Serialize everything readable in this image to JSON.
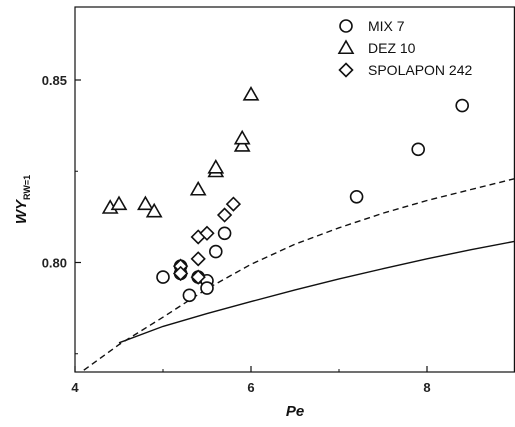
{
  "chart_data": {
    "type": "scatter",
    "title": "",
    "xlabel": "Pe",
    "ylabel": "WY",
    "ylabel_subscript": "RW=1",
    "xlim": [
      4,
      9
    ],
    "ylim": [
      0.77,
      0.87
    ],
    "xticks": [
      4,
      6,
      8
    ],
    "xtick_labels": [
      "4",
      "6",
      "8"
    ],
    "yticks": [
      0.8,
      0.85
    ],
    "ytick_labels": [
      "0.80",
      "0.85"
    ],
    "grid": false,
    "legend_position": "top-right",
    "series": [
      {
        "name": "MIX 7",
        "marker": "circle",
        "points": [
          [
            5.0,
            0.796
          ],
          [
            5.2,
            0.799
          ],
          [
            5.2,
            0.797
          ],
          [
            5.3,
            0.791
          ],
          [
            5.4,
            0.796
          ],
          [
            5.5,
            0.795
          ],
          [
            5.5,
            0.793
          ],
          [
            5.6,
            0.803
          ],
          [
            5.7,
            0.808
          ],
          [
            7.2,
            0.818
          ],
          [
            7.9,
            0.831
          ],
          [
            8.4,
            0.843
          ]
        ]
      },
      {
        "name": "DEZ 10",
        "marker": "triangle",
        "points": [
          [
            4.4,
            0.815
          ],
          [
            4.5,
            0.816
          ],
          [
            4.8,
            0.816
          ],
          [
            4.9,
            0.814
          ],
          [
            5.4,
            0.82
          ],
          [
            5.6,
            0.825
          ],
          [
            5.6,
            0.826
          ],
          [
            5.9,
            0.832
          ],
          [
            5.9,
            0.834
          ],
          [
            6.0,
            0.846
          ]
        ]
      },
      {
        "name": "SPOLAPON 242",
        "marker": "diamond",
        "points": [
          [
            5.2,
            0.799
          ],
          [
            5.2,
            0.797
          ],
          [
            5.4,
            0.796
          ],
          [
            5.4,
            0.801
          ],
          [
            5.4,
            0.807
          ],
          [
            5.5,
            0.808
          ],
          [
            5.7,
            0.813
          ],
          [
            5.8,
            0.816
          ]
        ]
      }
    ],
    "lines": [
      {
        "style": "dashed",
        "x": [
          4.1,
          4.5,
          5.0,
          5.5,
          6.0,
          6.5,
          7.0,
          7.5,
          8.0,
          8.5,
          9.0
        ],
        "y": [
          0.7705,
          0.7775,
          0.785,
          0.7928,
          0.7995,
          0.805,
          0.8095,
          0.8135,
          0.817,
          0.82,
          0.823
        ]
      },
      {
        "style": "solid",
        "x": [
          4.5,
          5.0,
          5.5,
          6.0,
          6.5,
          7.0,
          7.5,
          8.0,
          8.5,
          9.0
        ],
        "y": [
          0.778,
          0.7825,
          0.786,
          0.7893,
          0.7925,
          0.7955,
          0.7983,
          0.801,
          0.8035,
          0.8058
        ]
      }
    ]
  }
}
